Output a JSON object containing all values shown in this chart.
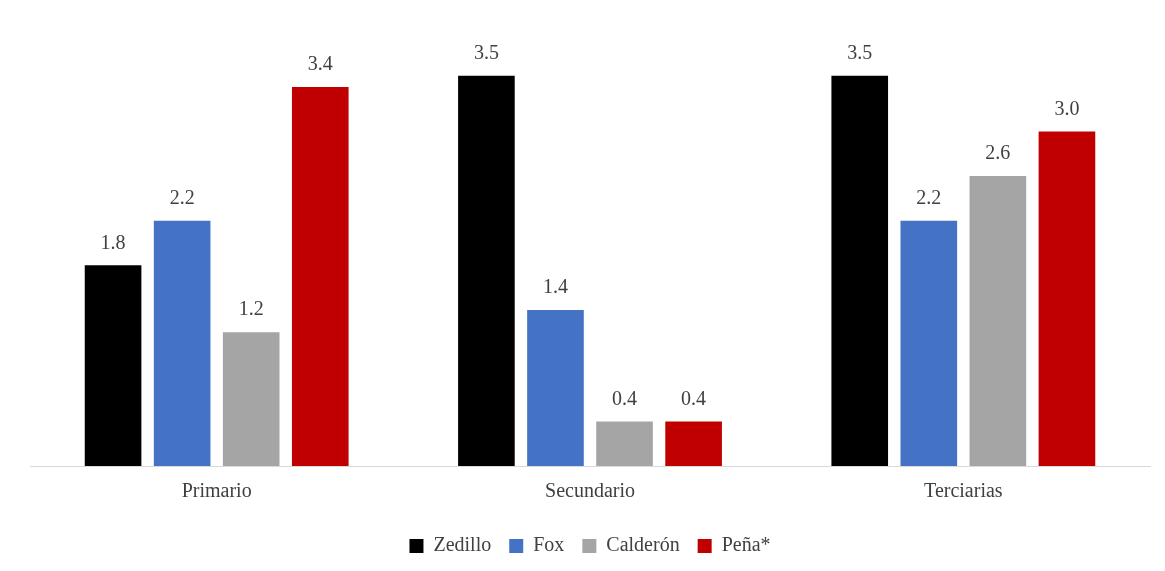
{
  "chart_data": {
    "type": "bar",
    "categories": [
      "Primario",
      "Secundario",
      "Terciarias"
    ],
    "series": [
      {
        "name": "Zedillo",
        "color": "#000000",
        "values": [
          1.8,
          3.5,
          3.5
        ],
        "value_labels": [
          "1.8",
          "3.5",
          "3.5"
        ]
      },
      {
        "name": "Fox",
        "color": "#4472c4",
        "values": [
          2.2,
          1.4,
          2.2
        ],
        "value_labels": [
          "2.2",
          "1.4",
          "2.2"
        ]
      },
      {
        "name": "Calderón",
        "color": "#a5a5a5",
        "values": [
          1.2,
          0.4,
          2.6
        ],
        "value_labels": [
          "1.2",
          "0.4",
          "2.6"
        ]
      },
      {
        "name": "Peña*",
        "color": "#c00000",
        "values": [
          3.4,
          0.4,
          3.0
        ],
        "value_labels": [
          "3.4",
          "0.4",
          "3.0"
        ]
      }
    ],
    "grid": false,
    "legend": "bottom"
  }
}
